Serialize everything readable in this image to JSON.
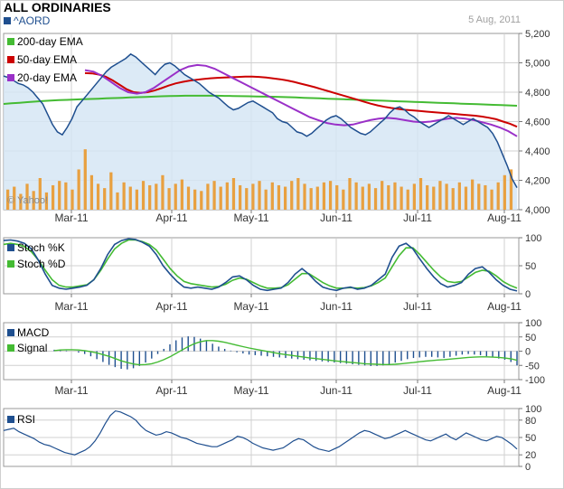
{
  "header": {
    "title": "ALL ORDINARIES",
    "ticker": "^AORD",
    "date": "5 Aug, 2011",
    "watermark": "© Yahoo!"
  },
  "colors": {
    "price_line": "#1f4f8f",
    "price_fill": "#d6e6f4",
    "ema200": "#44bb33",
    "ema50": "#cc0000",
    "ema20": "#9a30c8",
    "volume": "#e8a040",
    "stoch_k": "#1f4f8f",
    "stoch_d": "#44bb33",
    "macd": "#1f4f8f",
    "signal": "#44bb33",
    "rsi": "#1f4f8f",
    "grid": "#d0d0d0"
  },
  "chart_data": [
    {
      "type": "line",
      "panel": "price",
      "x_labels": [
        "Mar-11",
        "Apr-11",
        "May-11",
        "Jun-11",
        "Jul-11",
        "Aug-11"
      ],
      "ylim": [
        4000,
        5200
      ],
      "y_ticks": [
        "5,200",
        "5,000",
        "4,800",
        "4,600",
        "4,400",
        "4,200",
        "4,000"
      ],
      "grid": true,
      "legend_position": "top-left",
      "series": [
        {
          "name": "^AORD",
          "values": [
            4910,
            4900,
            4880,
            4860,
            4850,
            4830,
            4800,
            4760,
            4720,
            4650,
            4580,
            4530,
            4510,
            4560,
            4620,
            4700,
            4740,
            4780,
            4820,
            4860,
            4900,
            4940,
            4970,
            4990,
            5010,
            5030,
            5060,
            5040,
            5010,
            4980,
            4950,
            4920,
            4960,
            4990,
            5000,
            4980,
            4950,
            4920,
            4900,
            4880,
            4860,
            4830,
            4800,
            4780,
            4760,
            4730,
            4700,
            4680,
            4690,
            4710,
            4730,
            4740,
            4720,
            4700,
            4680,
            4660,
            4620,
            4600,
            4590,
            4560,
            4530,
            4520,
            4500,
            4520,
            4550,
            4580,
            4610,
            4630,
            4640,
            4620,
            4590,
            4560,
            4540,
            4520,
            4510,
            4530,
            4560,
            4590,
            4620,
            4660,
            4690,
            4700,
            4680,
            4650,
            4630,
            4600,
            4580,
            4560,
            4580,
            4600,
            4620,
            4640,
            4620,
            4600,
            4580,
            4600,
            4620,
            4600,
            4580,
            4560,
            4520,
            4460,
            4380,
            4300,
            4210,
            4150
          ]
        },
        {
          "name": "200-day EMA",
          "values": [
            4720,
            4724,
            4728,
            4732,
            4736,
            4740,
            4743,
            4746,
            4748,
            4750,
            4752,
            4754,
            4756,
            4758,
            4760,
            4762,
            4764,
            4766,
            4768,
            4770,
            4772,
            4774,
            4775,
            4776,
            4776,
            4776,
            4776,
            4776,
            4775,
            4774,
            4773,
            4772,
            4771,
            4770,
            4769,
            4768,
            4766,
            4764,
            4762,
            4760,
            4758,
            4756,
            4754,
            4752,
            4750,
            4748,
            4746,
            4744,
            4742,
            4740,
            4738,
            4736,
            4734,
            4732,
            4730,
            4728,
            4726,
            4724,
            4722,
            4720,
            4718,
            4716,
            4714,
            4712,
            4710,
            4708
          ]
        },
        {
          "name": "50-day EMA",
          "values": [
            4930,
            4928,
            4920,
            4905,
            4880,
            4850,
            4820,
            4800,
            4795,
            4800,
            4812,
            4828,
            4845,
            4860,
            4870,
            4878,
            4885,
            4890,
            4895,
            4898,
            4900,
            4902,
            4904,
            4906,
            4906,
            4904,
            4900,
            4894,
            4888,
            4880,
            4870,
            4858,
            4846,
            4834,
            4820,
            4806,
            4792,
            4778,
            4764,
            4750,
            4736,
            4722,
            4710,
            4700,
            4692,
            4686,
            4680,
            4676,
            4672,
            4668,
            4664,
            4660,
            4656,
            4652,
            4648,
            4644,
            4640,
            4634,
            4626,
            4616,
            4600,
            4585,
            4565
          ]
        },
        {
          "name": "20-day EMA",
          "values": [
            4950,
            4940,
            4910,
            4870,
            4830,
            4800,
            4790,
            4800,
            4830,
            4870,
            4910,
            4950,
            4975,
            4985,
            4980,
            4960,
            4930,
            4900,
            4870,
            4840,
            4810,
            4780,
            4750,
            4720,
            4690,
            4660,
            4630,
            4610,
            4590,
            4580,
            4575,
            4580,
            4595,
            4610,
            4620,
            4625,
            4620,
            4610,
            4600,
            4595,
            4600,
            4610,
            4620,
            4625,
            4620,
            4610,
            4595,
            4580,
            4560,
            4535,
            4500
          ]
        }
      ],
      "volume": [
        70,
        80,
        55,
        90,
        65,
        110,
        60,
        85,
        100,
        95,
        70,
        140,
        210,
        120,
        90,
        75,
        130,
        60,
        95,
        80,
        70,
        100,
        85,
        90,
        120,
        75,
        90,
        105,
        80,
        70,
        65,
        90,
        100,
        80,
        95,
        110,
        85,
        75,
        90,
        100,
        70,
        95,
        85,
        80,
        100,
        110,
        90,
        75,
        80,
        95,
        100,
        85,
        70,
        110,
        95,
        80,
        90,
        75,
        100,
        85,
        95,
        80,
        70,
        90,
        110,
        85,
        80,
        100,
        90,
        75,
        95,
        80,
        105,
        90,
        85,
        70,
        95,
        120,
        140
      ]
    },
    {
      "type": "line",
      "panel": "stochastic",
      "x_labels": [
        "Mar-11",
        "Apr-11",
        "May-11",
        "Jun-11",
        "Jul-11",
        "Aug-11"
      ],
      "ylim": [
        0,
        100
      ],
      "y_ticks": [
        "100",
        "50",
        "0"
      ],
      "grid": true,
      "legend_position": "top-left",
      "series": [
        {
          "name": "Stoch %K",
          "values": [
            95,
            96,
            94,
            90,
            80,
            60,
            35,
            15,
            10,
            8,
            10,
            12,
            15,
            25,
            45,
            70,
            88,
            95,
            98,
            97,
            92,
            85,
            70,
            50,
            35,
            22,
            12,
            10,
            12,
            10,
            8,
            12,
            20,
            30,
            32,
            25,
            15,
            8,
            6,
            8,
            10,
            20,
            35,
            45,
            35,
            22,
            12,
            8,
            6,
            10,
            12,
            8,
            10,
            15,
            25,
            35,
            65,
            85,
            90,
            80,
            62,
            45,
            30,
            18,
            12,
            15,
            20,
            35,
            45,
            48,
            38,
            25,
            15,
            8,
            5
          ]
        },
        {
          "name": "Stoch %D",
          "values": [
            88,
            90,
            88,
            84,
            75,
            60,
            42,
            25,
            15,
            12,
            12,
            14,
            16,
            25,
            42,
            62,
            80,
            90,
            96,
            96,
            93,
            88,
            78,
            62,
            45,
            32,
            22,
            18,
            16,
            14,
            12,
            13,
            17,
            24,
            28,
            26,
            20,
            14,
            10,
            10,
            11,
            16,
            26,
            36,
            36,
            28,
            20,
            14,
            10,
            10,
            11,
            10,
            11,
            14,
            20,
            28,
            48,
            68,
            82,
            82,
            70,
            56,
            42,
            30,
            22,
            20,
            22,
            30,
            38,
            42,
            40,
            32,
            22,
            15,
            10
          ]
        }
      ]
    },
    {
      "type": "bar",
      "panel": "macd",
      "x_labels": [
        "Mar-11",
        "Apr-11",
        "May-11",
        "Jun-11",
        "Jul-11",
        "Aug-11"
      ],
      "ylim": [
        -100,
        100
      ],
      "y_ticks": [
        "100",
        "50",
        "0",
        "-50",
        "-100"
      ],
      "grid": true,
      "legend_position": "top-left",
      "series": [
        {
          "name": "MACD",
          "values": [
            5,
            4,
            2,
            0,
            -5,
            -10,
            -18,
            -28,
            -38,
            -48,
            -56,
            -62,
            -64,
            -60,
            -52,
            -40,
            -26,
            -10,
            8,
            24,
            38,
            48,
            52,
            50,
            44,
            36,
            26,
            16,
            8,
            2,
            -4,
            -8,
            -12,
            -14,
            -16,
            -18,
            -20,
            -22,
            -24,
            -26,
            -28,
            -30,
            -32,
            -34,
            -36,
            -38,
            -40,
            -42,
            -44,
            -46,
            -48,
            -50,
            -52,
            -52,
            -50,
            -46,
            -40,
            -34,
            -28,
            -24,
            -22,
            -20,
            -20,
            -22,
            -24,
            -20,
            -16,
            -12,
            -10,
            -12,
            -14,
            -18,
            -22,
            -26,
            -30,
            -38,
            -50
          ]
        },
        {
          "name": "Signal",
          "values": [
            2,
            4,
            5,
            5,
            4,
            2,
            -2,
            -6,
            -12,
            -18,
            -26,
            -34,
            -40,
            -45,
            -48,
            -47,
            -44,
            -38,
            -30,
            -20,
            -8,
            4,
            16,
            26,
            33,
            37,
            37,
            35,
            31,
            26,
            21,
            16,
            11,
            7,
            3,
            -1,
            -5,
            -9,
            -12,
            -15,
            -18,
            -21,
            -24,
            -26,
            -29,
            -31,
            -34,
            -36,
            -38,
            -40,
            -42,
            -44,
            -45,
            -46,
            -47,
            -47,
            -46,
            -44,
            -42,
            -40,
            -37,
            -35,
            -33,
            -31,
            -30,
            -28,
            -26,
            -24,
            -22,
            -21,
            -20,
            -20,
            -21,
            -22,
            -24,
            -27,
            -32
          ]
        }
      ]
    },
    {
      "type": "line",
      "panel": "rsi",
      "x_labels": [
        "Mar-11",
        "Apr-11",
        "May-11",
        "Jun-11",
        "Jul-11",
        "Aug-11"
      ],
      "ylim": [
        0,
        100
      ],
      "y_ticks": [
        "100",
        "80",
        "50",
        "20",
        "0"
      ],
      "grid": true,
      "legend_position": "top-left",
      "series": [
        {
          "name": "RSI",
          "values": [
            62,
            64,
            66,
            60,
            56,
            52,
            48,
            42,
            38,
            36,
            32,
            28,
            24,
            22,
            20,
            24,
            28,
            34,
            44,
            58,
            74,
            88,
            96,
            94,
            90,
            86,
            80,
            70,
            62,
            58,
            54,
            56,
            60,
            58,
            54,
            50,
            48,
            44,
            40,
            38,
            36,
            34,
            34,
            38,
            42,
            46,
            52,
            50,
            46,
            40,
            36,
            32,
            30,
            28,
            30,
            32,
            38,
            44,
            48,
            46,
            40,
            34,
            30,
            28,
            26,
            30,
            34,
            40,
            46,
            52,
            58,
            62,
            60,
            56,
            52,
            48,
            50,
            54,
            58,
            62,
            58,
            54,
            50,
            46,
            44,
            48,
            52,
            56,
            50,
            46,
            52,
            58,
            54,
            50,
            46,
            44,
            48,
            52,
            50,
            44,
            38,
            30
          ]
        }
      ]
    }
  ]
}
